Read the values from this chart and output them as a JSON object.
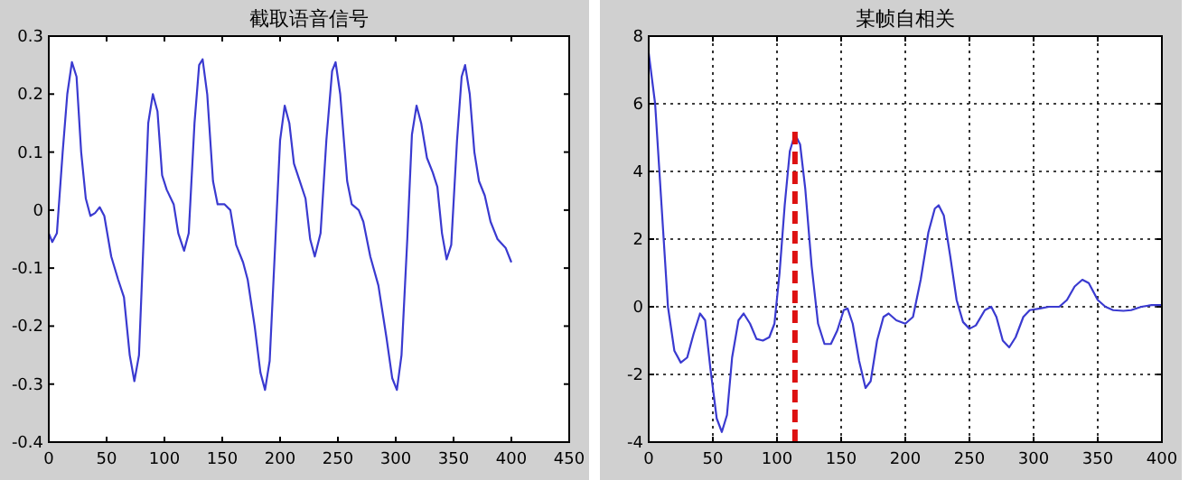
{
  "chart_data": [
    {
      "type": "line",
      "title": "截取语音信号",
      "xlim": [
        0,
        450
      ],
      "ylim": [
        -0.4,
        0.3
      ],
      "xticks": [
        0,
        50,
        100,
        150,
        200,
        250,
        300,
        350,
        400,
        450
      ],
      "yticks": [
        -0.4,
        -0.3,
        -0.2,
        -0.1,
        0,
        0.1,
        0.2,
        0.3
      ],
      "grid": false,
      "series": [
        {
          "color": "#3a3ad0",
          "x": [
            0,
            3,
            7,
            12,
            16,
            20,
            24,
            28,
            32,
            36,
            40,
            44,
            48,
            54,
            60,
            65,
            70,
            74,
            78,
            82,
            86,
            90,
            94,
            98,
            102,
            108,
            112,
            117,
            121,
            126,
            130,
            133,
            137,
            142,
            146,
            152,
            157,
            162,
            168,
            172,
            178,
            183,
            187,
            191,
            196,
            200,
            204,
            208,
            212,
            217,
            222,
            226,
            230,
            235,
            240,
            245,
            248,
            252,
            258,
            262,
            268,
            272,
            278,
            285,
            292,
            297,
            301,
            305,
            310,
            314,
            318,
            322,
            327,
            332,
            336,
            340,
            344,
            348,
            353,
            357,
            360,
            364,
            368,
            372,
            377,
            382,
            388,
            395,
            400
          ],
          "values": [
            -0.04,
            -0.055,
            -0.04,
            0.1,
            0.2,
            0.255,
            0.23,
            0.1,
            0.02,
            -0.01,
            -0.005,
            0.005,
            -0.01,
            -0.08,
            -0.12,
            -0.15,
            -0.25,
            -0.295,
            -0.25,
            -0.05,
            0.15,
            0.2,
            0.17,
            0.06,
            0.035,
            0.01,
            -0.04,
            -0.07,
            -0.04,
            0.15,
            0.25,
            0.26,
            0.2,
            0.05,
            0.01,
            0.01,
            0.0,
            -0.06,
            -0.09,
            -0.12,
            -0.2,
            -0.28,
            -0.31,
            -0.26,
            -0.05,
            0.12,
            0.18,
            0.15,
            0.08,
            0.05,
            0.02,
            -0.05,
            -0.08,
            -0.04,
            0.12,
            0.24,
            0.255,
            0.2,
            0.05,
            0.01,
            0.0,
            -0.02,
            -0.08,
            -0.13,
            -0.22,
            -0.29,
            -0.31,
            -0.25,
            -0.05,
            0.13,
            0.18,
            0.15,
            0.09,
            0.065,
            0.04,
            -0.04,
            -0.085,
            -0.06,
            0.12,
            0.23,
            0.25,
            0.2,
            0.1,
            0.05,
            0.025,
            -0.02,
            -0.05,
            -0.065,
            -0.09
          ]
        }
      ]
    },
    {
      "type": "line",
      "title": "某帧自相关",
      "xlim": [
        0,
        400
      ],
      "ylim": [
        -4,
        8
      ],
      "xticks": [
        0,
        50,
        100,
        150,
        200,
        250,
        300,
        350,
        400
      ],
      "yticks": [
        -4,
        -2,
        0,
        2,
        4,
        6,
        8
      ],
      "grid": true,
      "series": [
        {
          "color": "#3a3ad0",
          "x": [
            0,
            5,
            10,
            15,
            20,
            25,
            30,
            35,
            40,
            44,
            48,
            53,
            57,
            61,
            65,
            70,
            74,
            79,
            84,
            89,
            94,
            98,
            102,
            106,
            110,
            114,
            118,
            122,
            127,
            132,
            137,
            142,
            147,
            152,
            155,
            159,
            164,
            169,
            173,
            178,
            183,
            187,
            193,
            200,
            206,
            212,
            218,
            223,
            226,
            230,
            235,
            240,
            245,
            250,
            255,
            262,
            267,
            271,
            276,
            281,
            286,
            292,
            297,
            305,
            312,
            320,
            326,
            332,
            338,
            343,
            350,
            356,
            362,
            370,
            376,
            384,
            392,
            400
          ],
          "values": [
            7.5,
            6,
            3,
            0,
            -1.3,
            -1.65,
            -1.5,
            -0.8,
            -0.2,
            -0.4,
            -1.8,
            -3.3,
            -3.7,
            -3.2,
            -1.5,
            -0.4,
            -0.2,
            -0.5,
            -0.95,
            -1.0,
            -0.9,
            -0.5,
            1,
            3,
            4.6,
            5.1,
            4.8,
            3.5,
            1.2,
            -0.5,
            -1.1,
            -1.1,
            -0.7,
            -0.1,
            -0.05,
            -0.5,
            -1.6,
            -2.4,
            -2.2,
            -1.0,
            -0.3,
            -0.2,
            -0.4,
            -0.5,
            -0.3,
            0.8,
            2.2,
            2.9,
            3.0,
            2.7,
            1.5,
            0.2,
            -0.45,
            -0.65,
            -0.55,
            -0.1,
            0.0,
            -0.3,
            -1.0,
            -1.2,
            -0.9,
            -0.3,
            -0.1,
            -0.05,
            0.0,
            0.0,
            0.2,
            0.6,
            0.8,
            0.7,
            0.2,
            0.0,
            -0.1,
            -0.12,
            -0.1,
            0.0,
            0.05,
            0.05
          ]
        },
        {
          "color": "#dd1111",
          "line_style": "dashed",
          "x": [
            114,
            114
          ],
          "values": [
            -4,
            5.3
          ]
        }
      ]
    }
  ]
}
